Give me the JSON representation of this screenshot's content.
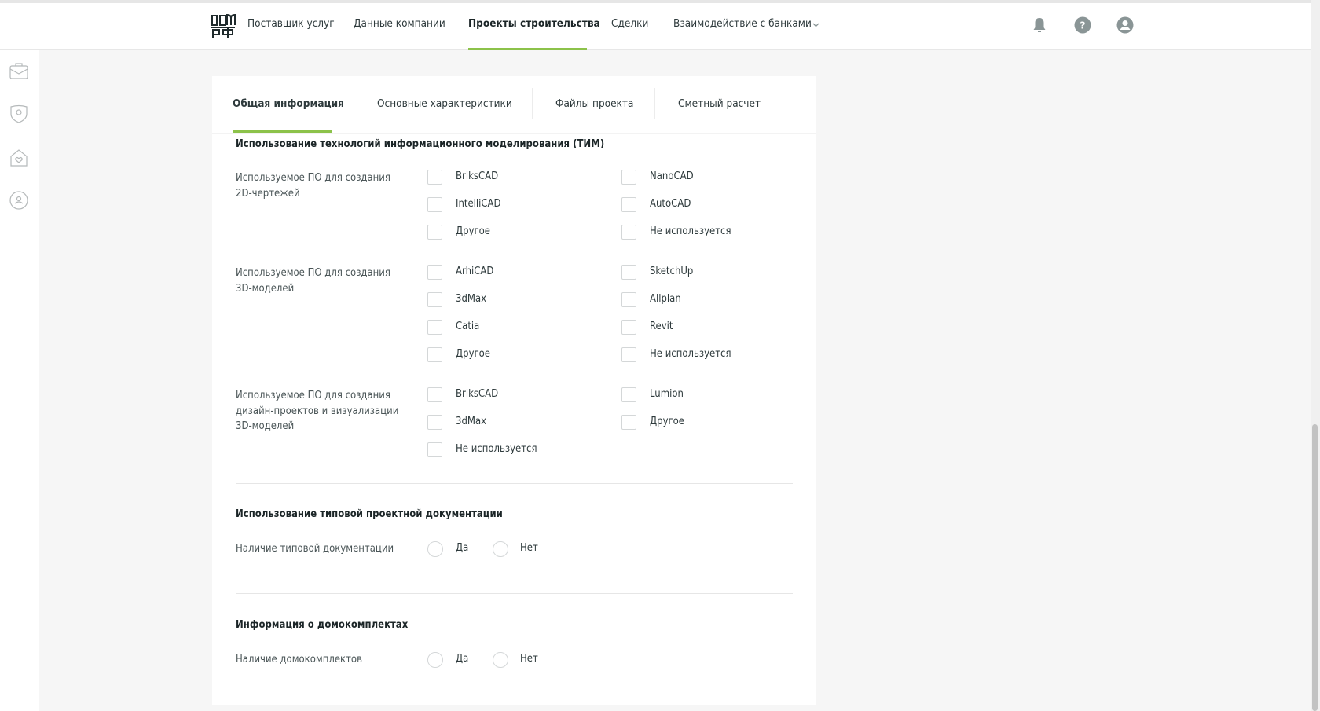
{
  "header": {
    "logo_text": "ДОМ РФ",
    "nav": [
      {
        "label": "Поставщик услуг"
      },
      {
        "label": "Данные компании"
      },
      {
        "label": "Проекты строительства",
        "active": true
      },
      {
        "label": "Сделки"
      },
      {
        "label": "Взаимодействие с банками",
        "dropdown": true
      }
    ],
    "icons": [
      "bell-icon",
      "help-icon",
      "user-icon"
    ]
  },
  "sidebar": {
    "icons": [
      "briefcase-icon",
      "shield-emblem-icon",
      "house-heart-icon",
      "people-circle-icon"
    ]
  },
  "tabs": [
    {
      "label": "Общая информация",
      "active": true
    },
    {
      "label": "Основные характеристики"
    },
    {
      "label": "Файлы проекта"
    },
    {
      "label": "Сметный расчет"
    }
  ],
  "sections": {
    "tim": {
      "title": "Использование технологий информационного моделирования (ТИМ)",
      "groups": [
        {
          "label": "Используемое ПО для создания 2D-чертежей",
          "options": [
            "BriksCAD",
            "NanoCAD",
            "IntelliCAD",
            "AutoCAD",
            "Другое",
            "Не используется"
          ]
        },
        {
          "label": "Используемое ПО для создания 3D-моделей",
          "options": [
            "ArhiCAD",
            "SketchUp",
            "3dMax",
            "Allplan",
            "Catia",
            "Revit",
            "Другое",
            "Не используется"
          ]
        },
        {
          "label": "Используемое ПО для создания дизайн-проектов и визуализации 3D-моделей",
          "options": [
            "BriksCAD",
            "Lumion",
            "3dMax",
            "Другое",
            "Не используется"
          ]
        }
      ]
    },
    "typical": {
      "title": "Использование типовой проектной документации",
      "label": "Наличие типовой документации",
      "yes": "Да",
      "no": "Нет"
    },
    "kits": {
      "title": "Информация о домокомплектах",
      "label": "Наличие домокомплектов",
      "yes": "Да",
      "no": "Нет"
    }
  },
  "colors": {
    "accent": "#8cc24a",
    "icon": "#8a9596"
  }
}
